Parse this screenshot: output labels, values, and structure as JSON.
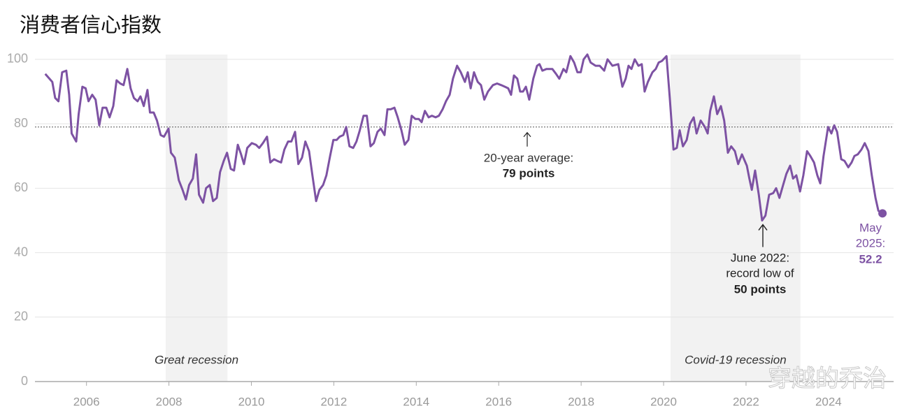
{
  "chart_data": {
    "type": "line",
    "title": "消费者信心指数",
    "color": "#7d52a3",
    "x": [
      2005.0,
      2005.17,
      2005.24,
      2005.32,
      2005.41,
      2005.51,
      2005.58,
      2005.64,
      2005.75,
      2005.81,
      2005.9,
      2005.98,
      2006.05,
      2006.14,
      2006.22,
      2006.31,
      2006.39,
      2006.48,
      2006.56,
      2006.65,
      2006.73,
      2006.82,
      2006.9,
      2006.99,
      2007.07,
      2007.15,
      2007.24,
      2007.31,
      2007.39,
      2007.48,
      2007.54,
      2007.63,
      2007.71,
      2007.8,
      2007.88,
      2007.99,
      2008.05,
      2008.14,
      2008.24,
      2008.33,
      2008.41,
      2008.49,
      2008.58,
      2008.66,
      2008.73,
      2008.83,
      2008.9,
      2008.99,
      2009.07,
      2009.16,
      2009.24,
      2009.33,
      2009.41,
      2009.5,
      2009.58,
      2009.67,
      2009.75,
      2009.82,
      2009.9,
      2010.01,
      2010.11,
      2010.19,
      2010.28,
      2010.38,
      2010.46,
      2010.55,
      2010.63,
      2010.72,
      2010.8,
      2010.89,
      2010.97,
      2011.06,
      2011.14,
      2011.23,
      2011.31,
      2011.4,
      2011.48,
      2011.57,
      2011.65,
      2011.74,
      2011.82,
      2011.91,
      2011.99,
      2012.07,
      2012.14,
      2012.23,
      2012.3,
      2012.38,
      2012.47,
      2012.55,
      2012.63,
      2012.72,
      2012.8,
      2012.89,
      2012.97,
      2013.06,
      2013.14,
      2013.23,
      2013.3,
      2013.38,
      2013.47,
      2013.55,
      2013.64,
      2013.72,
      2013.81,
      2013.89,
      2013.98,
      2014.06,
      2014.13,
      2014.21,
      2014.3,
      2014.38,
      2014.47,
      2014.55,
      2014.64,
      2014.72,
      2014.81,
      2014.89,
      2014.99,
      2015.08,
      2015.18,
      2015.25,
      2015.32,
      2015.4,
      2015.49,
      2015.57,
      2015.65,
      2015.74,
      2015.86,
      2015.96,
      2016.06,
      2016.15,
      2016.23,
      2016.3,
      2016.37,
      2016.45,
      2016.52,
      2016.59,
      2016.66,
      2016.74,
      2016.84,
      2016.93,
      2016.99,
      2017.06,
      2017.16,
      2017.3,
      2017.39,
      2017.47,
      2017.57,
      2017.64,
      2017.74,
      2017.83,
      2017.91,
      2017.99,
      2018.06,
      2018.15,
      2018.23,
      2018.35,
      2018.45,
      2018.56,
      2018.64,
      2018.76,
      2018.9,
      2019.0,
      2019.08,
      2019.15,
      2019.22,
      2019.3,
      2019.39,
      2019.47,
      2019.54,
      2019.62,
      2019.73,
      2019.81,
      2019.88,
      2019.96,
      2020.07,
      2020.15,
      2020.24,
      2020.32,
      2020.39,
      2020.47,
      2020.56,
      2020.64,
      2020.73,
      2020.8,
      2020.9,
      2021.0,
      2021.07,
      2021.13,
      2021.22,
      2021.3,
      2021.39,
      2021.47,
      2021.56,
      2021.64,
      2021.73,
      2021.81,
      2021.9,
      2022.02,
      2022.08,
      2022.14,
      2022.22,
      2022.31,
      2022.39,
      2022.47,
      2022.56,
      2022.66,
      2022.73,
      2022.81,
      2022.9,
      2022.98,
      2023.07,
      2023.14,
      2023.22,
      2023.31,
      2023.39,
      2023.48,
      2023.56,
      2023.65,
      2023.73,
      2023.8,
      2023.88,
      2023.99,
      2024.07,
      2024.14,
      2024.21,
      2024.31,
      2024.39,
      2024.48,
      2024.56,
      2024.63,
      2024.71,
      2024.8,
      2024.88,
      2024.97,
      2025.05,
      2025.14,
      2025.21,
      2025.31
    ],
    "values": [
      95.5,
      93,
      88,
      87,
      96,
      96.5,
      89,
      77,
      74.5,
      83,
      91.5,
      91,
      87,
      89,
      87.5,
      79.5,
      85,
      85,
      82,
      85.5,
      93.5,
      92.5,
      92,
      97,
      91,
      88,
      87,
      88.5,
      85.5,
      90.5,
      83.5,
      83.5,
      81,
      76.5,
      76,
      78.5,
      71,
      69.5,
      62.5,
      59.5,
      56.5,
      61,
      63,
      70.5,
      58,
      55.5,
      60,
      61,
      56,
      57,
      65,
      68.5,
      71,
      66,
      65.5,
      73.5,
      70.5,
      67.5,
      72.5,
      74,
      73.5,
      72.5,
      74,
      76,
      68,
      69,
      68.5,
      68,
      72,
      74.5,
      74.5,
      77.5,
      67.5,
      69.5,
      74.5,
      71.5,
      64,
      56,
      59.5,
      61,
      64,
      70,
      75,
      75,
      76,
      76.5,
      79,
      73,
      72.5,
      74.5,
      78,
      82.5,
      82.5,
      73,
      74,
      77.5,
      78.5,
      76.5,
      84.5,
      84.5,
      85,
      82,
      78,
      73.5,
      75,
      82.5,
      81.5,
      81.5,
      80.5,
      84,
      82,
      82.5,
      82,
      82.5,
      84.5,
      87,
      89,
      94,
      98,
      96,
      93,
      96,
      91,
      96,
      93,
      92,
      87.5,
      90,
      92,
      92.5,
      92,
      91.5,
      91,
      89,
      95,
      94,
      90,
      90,
      91.5,
      87.5,
      94,
      98,
      98.5,
      96.5,
      97,
      97,
      95.5,
      94,
      97,
      96,
      101,
      99,
      96,
      96,
      100,
      101.5,
      99,
      98,
      98,
      96.5,
      100,
      98,
      98.5,
      91.5,
      94,
      98,
      97,
      100,
      98,
      98.5,
      90,
      93,
      96,
      97,
      99,
      99.5,
      101,
      88,
      72,
      72.5,
      78,
      73,
      75,
      80,
      82,
      77,
      81,
      79,
      77,
      84,
      88.5,
      83,
      85.5,
      81,
      71,
      73,
      71.5,
      67.5,
      70.5,
      67,
      63,
      59.5,
      65.5,
      58,
      50,
      51.5,
      58,
      58.5,
      60,
      57,
      61,
      64.5,
      67,
      63,
      64,
      59,
      64,
      71.5,
      70,
      68,
      64,
      61.5,
      70,
      79,
      77,
      79.5,
      77.5,
      69,
      68.5,
      66.5,
      68,
      70,
      70.5,
      72,
      74,
      71.5,
      64,
      57,
      53,
      52.2
    ],
    "xlim": [
      2004.75,
      2025.58
    ],
    "xticks": [
      2006,
      2008,
      2010,
      2012,
      2014,
      2016,
      2018,
      2020,
      2022,
      2024
    ],
    "ylim": [
      0,
      101.5
    ],
    "yticks": [
      0,
      20,
      40,
      60,
      80,
      100
    ],
    "grid": true,
    "recessions": [
      {
        "label": "Great recession",
        "start": 2007.92,
        "end": 2009.42
      },
      {
        "label": "Covid-19 recession",
        "start": 2020.17,
        "end": 2023.32
      }
    ],
    "average": {
      "value": 79,
      "text": "20-year average:",
      "value_label": "79 points"
    },
    "annotations": [
      {
        "text": [
          "June 2022:",
          "record low of"
        ],
        "value": 50,
        "value_label": "50 points"
      },
      {
        "text": [
          "May",
          "2025:"
        ],
        "value": 52.2
      }
    ]
  },
  "watermark": "穿越的乔治"
}
